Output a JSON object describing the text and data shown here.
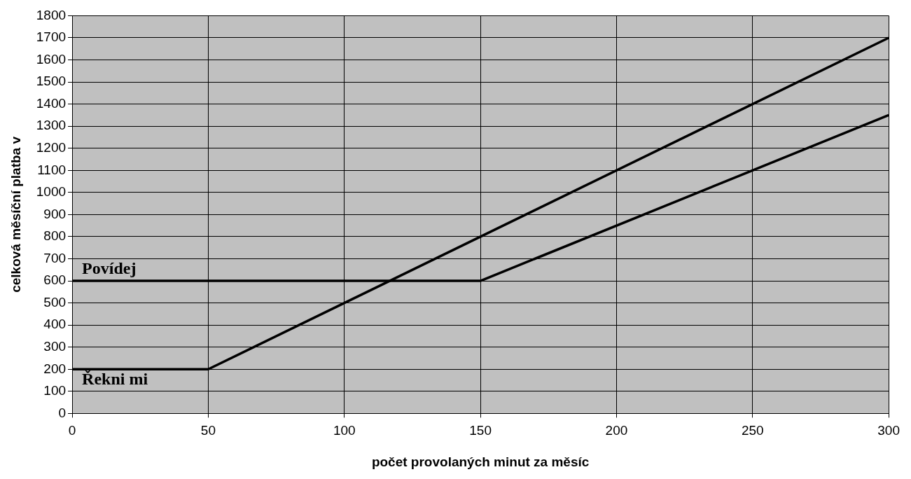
{
  "chart_data": {
    "type": "line",
    "xlabel": "počet provolaných minut za měsíc",
    "ylabel": "celková měsíční platba v",
    "xlim": [
      0,
      300
    ],
    "xticks": [
      0,
      50,
      100,
      150,
      200,
      250,
      300
    ],
    "ylim": [
      0,
      1800
    ],
    "yticks": [
      0,
      100,
      200,
      300,
      400,
      500,
      600,
      700,
      800,
      900,
      1000,
      1100,
      1200,
      1300,
      1400,
      1500,
      1600,
      1700,
      1800
    ],
    "grid": true,
    "legend": false,
    "marker": "none",
    "line_style": "solid",
    "series": [
      {
        "name": "Povídej",
        "color": "#000000",
        "x": [
          0,
          150,
          300
        ],
        "values": [
          600,
          600,
          1350
        ]
      },
      {
        "name": "Řekni mi",
        "color": "#000000",
        "x": [
          0,
          50,
          300
        ],
        "values": [
          200,
          200,
          1700
        ]
      }
    ]
  }
}
